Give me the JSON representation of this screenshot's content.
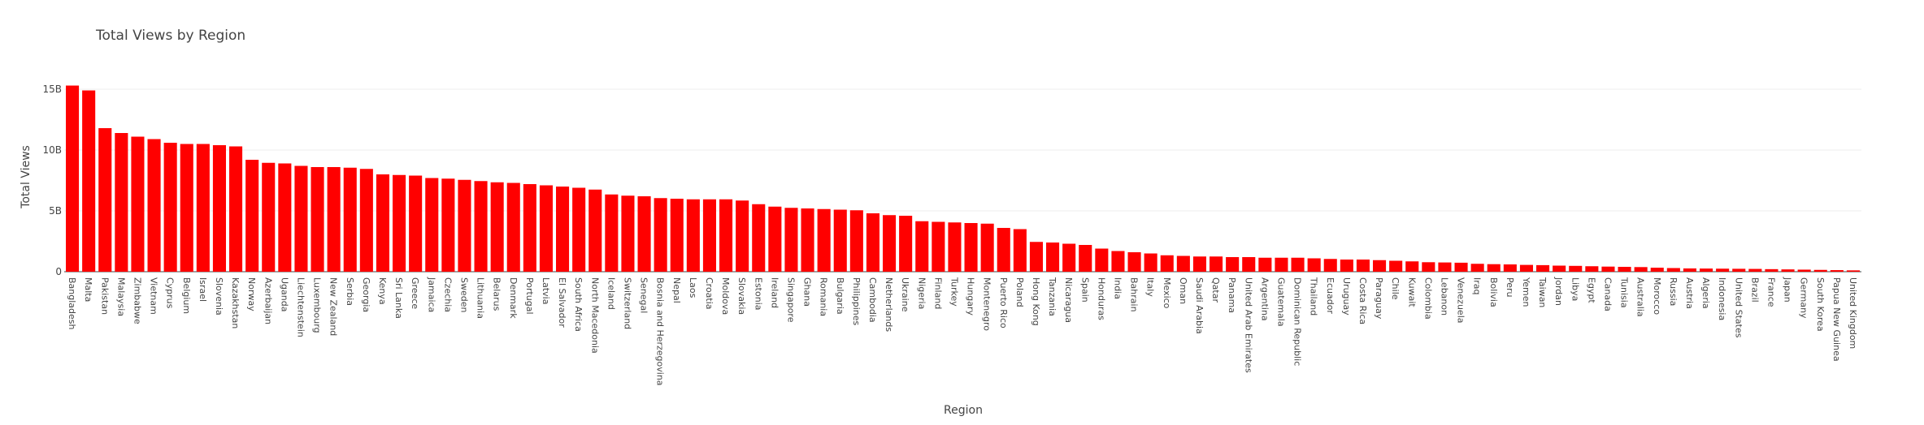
{
  "chart_data": {
    "type": "bar",
    "title": "Total Views by Region",
    "xlabel": "Region",
    "ylabel": "Total Views",
    "ylim": [
      0,
      16000000000
    ],
    "yticks": [
      0,
      5000000000,
      10000000000,
      15000000000
    ],
    "ytick_labels": [
      "0",
      "5B",
      "10B",
      "15B"
    ],
    "grid": true,
    "bar_color": "#ff0000",
    "categories": [
      "Bangladesh",
      "Malta",
      "Pakistan",
      "Malaysia",
      "Zimbabwe",
      "Vietnam",
      "Cyprus",
      "Belgium",
      "Israel",
      "Slovenia",
      "Kazakhstan",
      "Norway",
      "Azerbaijan",
      "Uganda",
      "Liechtenstein",
      "Luxembourg",
      "New Zealand",
      "Serbia",
      "Georgia",
      "Kenya",
      "Sri Lanka",
      "Greece",
      "Jamaica",
      "Czechia",
      "Sweden",
      "Lithuania",
      "Belarus",
      "Denmark",
      "Portugal",
      "Latvia",
      "El Salvador",
      "South Africa",
      "North Macedonia",
      "Iceland",
      "Switzerland",
      "Senegal",
      "Bosnia and Herzegovina",
      "Nepal",
      "Laos",
      "Croatia",
      "Moldova",
      "Slovakia",
      "Estonia",
      "Ireland",
      "Singapore",
      "Ghana",
      "Romania",
      "Bulgaria",
      "Philippines",
      "Cambodia",
      "Netherlands",
      "Ukraine",
      "Nigeria",
      "Finland",
      "Turkey",
      "Hungary",
      "Montenegro",
      "Puerto Rico",
      "Poland",
      "Hong Kong",
      "Tanzania",
      "Nicaragua",
      "Spain",
      "Honduras",
      "India",
      "Bahrain",
      "Italy",
      "Mexico",
      "Oman",
      "Saudi Arabia",
      "Qatar",
      "Panama",
      "United Arab Emirates",
      "Argentina",
      "Guatemala",
      "Dominican Republic",
      "Thailand",
      "Ecuador",
      "Uruguay",
      "Costa Rica",
      "Paraguay",
      "Chile",
      "Kuwait",
      "Colombia",
      "Lebanon",
      "Venezuela",
      "Iraq",
      "Bolivia",
      "Peru",
      "Yemen",
      "Taiwan",
      "Jordan",
      "Libya",
      "Egypt",
      "Canada",
      "Tunisia",
      "Australia",
      "Morocco",
      "Russia",
      "Austria",
      "Algeria",
      "Indonesia",
      "United States",
      "Brazil",
      "France",
      "Japan",
      "Germany",
      "South Korea",
      "Papua New Guinea",
      "United Kingdom"
    ],
    "values": [
      15300000000,
      14900000000,
      11800000000,
      11400000000,
      11100000000,
      10900000000,
      10600000000,
      10500000000,
      10500000000,
      10400000000,
      10300000000,
      9200000000,
      8950000000,
      8900000000,
      8700000000,
      8600000000,
      8600000000,
      8550000000,
      8450000000,
      8000000000,
      7950000000,
      7900000000,
      7700000000,
      7650000000,
      7550000000,
      7450000000,
      7350000000,
      7300000000,
      7200000000,
      7100000000,
      7000000000,
      6900000000,
      6750000000,
      6350000000,
      6250000000,
      6200000000,
      6050000000,
      6000000000,
      5950000000,
      5950000000,
      5950000000,
      5850000000,
      5550000000,
      5350000000,
      5250000000,
      5200000000,
      5150000000,
      5100000000,
      5050000000,
      4800000000,
      4650000000,
      4600000000,
      4150000000,
      4100000000,
      4050000000,
      4000000000,
      3950000000,
      3600000000,
      3500000000,
      2450000000,
      2400000000,
      2300000000,
      2200000000,
      1900000000,
      1700000000,
      1600000000,
      1500000000,
      1350000000,
      1300000000,
      1250000000,
      1250000000,
      1200000000,
      1200000000,
      1150000000,
      1150000000,
      1150000000,
      1100000000,
      1050000000,
      1000000000,
      1000000000,
      950000000,
      900000000,
      850000000,
      780000000,
      760000000,
      740000000,
      650000000,
      620000000,
      600000000,
      560000000,
      540000000,
      500000000,
      480000000,
      450000000,
      420000000,
      400000000,
      380000000,
      330000000,
      300000000,
      270000000,
      260000000,
      250000000,
      240000000,
      230000000,
      210000000,
      190000000,
      170000000,
      150000000,
      130000000,
      110000000
    ]
  }
}
